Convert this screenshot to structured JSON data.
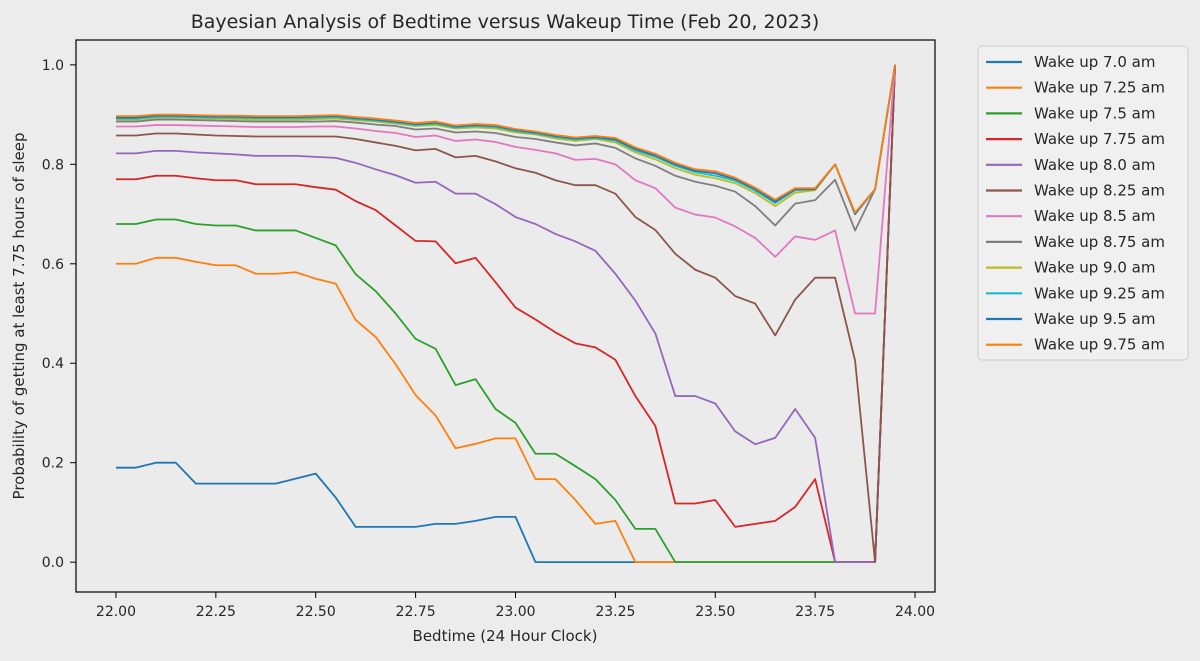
{
  "chart_data": {
    "type": "line",
    "title": "Bayesian Analysis of Bedtime versus Wakeup Time (Feb 20, 2023)",
    "xlabel": "Bedtime (24 Hour Clock)",
    "ylabel": "Probability of getting at least 7.75 hours of sleep",
    "xlim": [
      21.9,
      24.05
    ],
    "ylim": [
      -0.06,
      1.05
    ],
    "xticks": [
      22.0,
      22.25,
      22.5,
      22.75,
      23.0,
      23.25,
      23.5,
      23.75,
      24.0
    ],
    "xtick_labels": [
      "22.00",
      "22.25",
      "22.50",
      "22.75",
      "23.00",
      "23.25",
      "23.50",
      "23.75",
      "24.00"
    ],
    "yticks": [
      0.0,
      0.2,
      0.4,
      0.6,
      0.8,
      1.0
    ],
    "ytick_labels": [
      "0.0",
      "0.2",
      "0.4",
      "0.6",
      "0.8",
      "1.0"
    ],
    "grid": false,
    "legend_position": "outside-right-top",
    "x": [
      22.0,
      22.05,
      22.1,
      22.15,
      22.2,
      22.25,
      22.3,
      22.35,
      22.4,
      22.45,
      22.5,
      22.55,
      22.6,
      22.65,
      22.7,
      22.75,
      22.8,
      22.85,
      22.9,
      22.95,
      23.0,
      23.05,
      23.1,
      23.15,
      23.2,
      23.25,
      23.3,
      23.35,
      23.4,
      23.45,
      23.5,
      23.55,
      23.6,
      23.65,
      23.7,
      23.75,
      23.8,
      23.85,
      23.9,
      23.95
    ],
    "series": [
      {
        "name": "Wake up 7.0 am",
        "color": "#1f77b4",
        "values": [
          0.19,
          0.19,
          0.2,
          0.2,
          0.158,
          0.158,
          0.158,
          0.158,
          0.158,
          0.168,
          0.178,
          0.13,
          0.071,
          0.071,
          0.071,
          0.071,
          0.077,
          0.077,
          0.083,
          0.091,
          0.091,
          0.0,
          0.0,
          0.0,
          0.0,
          0.0,
          0.0,
          0.0,
          0.0,
          0.0,
          0.0,
          0.0,
          0.0,
          0.0,
          0.0,
          0.0,
          0.0,
          0.0,
          0.0,
          1.0
        ]
      },
      {
        "name": "Wake up 7.25 am",
        "color": "#ff7f0e",
        "values": [
          0.6,
          0.6,
          0.612,
          0.612,
          0.604,
          0.597,
          0.597,
          0.58,
          0.58,
          0.583,
          0.57,
          0.56,
          0.487,
          0.453,
          0.398,
          0.336,
          0.295,
          0.229,
          0.238,
          0.249,
          0.249,
          0.167,
          0.167,
          0.125,
          0.077,
          0.083,
          0.0,
          0.0,
          0.0,
          0.0,
          0.0,
          0.0,
          0.0,
          0.0,
          0.0,
          0.0,
          0.0,
          0.0,
          0.0,
          1.0
        ]
      },
      {
        "name": "Wake up 7.5 am",
        "color": "#2ca02c",
        "values": [
          0.68,
          0.68,
          0.689,
          0.689,
          0.68,
          0.677,
          0.677,
          0.667,
          0.667,
          0.667,
          0.652,
          0.637,
          0.579,
          0.545,
          0.5,
          0.449,
          0.429,
          0.356,
          0.368,
          0.308,
          0.28,
          0.218,
          0.218,
          0.193,
          0.167,
          0.125,
          0.067,
          0.067,
          0.0,
          0.0,
          0.0,
          0.0,
          0.0,
          0.0,
          0.0,
          0.0,
          0.0,
          0.0,
          0.0,
          1.0
        ]
      },
      {
        "name": "Wake up 7.75 am",
        "color": "#d62728",
        "values": [
          0.77,
          0.77,
          0.777,
          0.777,
          0.772,
          0.768,
          0.768,
          0.76,
          0.76,
          0.76,
          0.754,
          0.749,
          0.726,
          0.708,
          0.677,
          0.646,
          0.645,
          0.601,
          0.612,
          0.563,
          0.512,
          0.488,
          0.462,
          0.44,
          0.432,
          0.407,
          0.334,
          0.274,
          0.118,
          0.118,
          0.125,
          0.071,
          0.077,
          0.083,
          0.111,
          0.167,
          0.0,
          0.0,
          0.0,
          1.0
        ]
      },
      {
        "name": "Wake up 8.0 am",
        "color": "#9467bd",
        "values": [
          0.822,
          0.822,
          0.827,
          0.827,
          0.824,
          0.822,
          0.82,
          0.817,
          0.817,
          0.817,
          0.815,
          0.813,
          0.803,
          0.79,
          0.778,
          0.763,
          0.765,
          0.741,
          0.741,
          0.72,
          0.694,
          0.68,
          0.66,
          0.645,
          0.626,
          0.58,
          0.526,
          0.46,
          0.334,
          0.334,
          0.319,
          0.263,
          0.237,
          0.25,
          0.308,
          0.25,
          0.0,
          0.0,
          0.0,
          1.0
        ]
      },
      {
        "name": "Wake up 8.25 am",
        "color": "#8c564b",
        "values": [
          0.858,
          0.858,
          0.862,
          0.862,
          0.86,
          0.858,
          0.857,
          0.856,
          0.856,
          0.856,
          0.856,
          0.856,
          0.851,
          0.844,
          0.837,
          0.828,
          0.831,
          0.814,
          0.817,
          0.806,
          0.792,
          0.783,
          0.768,
          0.758,
          0.758,
          0.741,
          0.694,
          0.668,
          0.62,
          0.588,
          0.572,
          0.535,
          0.52,
          0.456,
          0.528,
          0.572,
          0.572,
          0.405,
          0.0,
          1.0
        ]
      },
      {
        "name": "Wake up 8.5 am",
        "color": "#e377c2",
        "values": [
          0.876,
          0.876,
          0.879,
          0.879,
          0.878,
          0.877,
          0.876,
          0.875,
          0.875,
          0.875,
          0.876,
          0.876,
          0.872,
          0.867,
          0.863,
          0.855,
          0.858,
          0.847,
          0.85,
          0.845,
          0.835,
          0.829,
          0.822,
          0.809,
          0.811,
          0.8,
          0.768,
          0.752,
          0.713,
          0.699,
          0.693,
          0.675,
          0.652,
          0.614,
          0.655,
          0.648,
          0.667,
          0.5,
          0.5,
          1.0
        ]
      },
      {
        "name": "Wake up 8.75 am",
        "color": "#7f7f7f",
        "values": [
          0.886,
          0.886,
          0.89,
          0.89,
          0.889,
          0.888,
          0.887,
          0.886,
          0.886,
          0.886,
          0.886,
          0.887,
          0.884,
          0.88,
          0.877,
          0.87,
          0.872,
          0.864,
          0.866,
          0.863,
          0.855,
          0.851,
          0.844,
          0.838,
          0.842,
          0.833,
          0.812,
          0.797,
          0.777,
          0.765,
          0.757,
          0.745,
          0.716,
          0.677,
          0.721,
          0.728,
          0.769,
          0.667,
          0.75,
          1.0
        ]
      },
      {
        "name": "Wake up 9.0 am",
        "color": "#bcbd22",
        "values": [
          0.89,
          0.89,
          0.894,
          0.894,
          0.893,
          0.892,
          0.891,
          0.89,
          0.89,
          0.89,
          0.891,
          0.892,
          0.889,
          0.886,
          0.882,
          0.877,
          0.879,
          0.872,
          0.874,
          0.872,
          0.864,
          0.86,
          0.852,
          0.847,
          0.851,
          0.844,
          0.824,
          0.81,
          0.792,
          0.779,
          0.772,
          0.762,
          0.742,
          0.716,
          0.743,
          0.748,
          0.8,
          0.7,
          0.75,
          1.0
        ]
      },
      {
        "name": "Wake up 9.25 am",
        "color": "#17becf",
        "values": [
          0.892,
          0.892,
          0.896,
          0.896,
          0.895,
          0.894,
          0.894,
          0.893,
          0.893,
          0.893,
          0.894,
          0.895,
          0.891,
          0.888,
          0.884,
          0.879,
          0.882,
          0.874,
          0.877,
          0.875,
          0.867,
          0.862,
          0.855,
          0.85,
          0.853,
          0.848,
          0.828,
          0.815,
          0.797,
          0.784,
          0.777,
          0.767,
          0.747,
          0.722,
          0.748,
          0.75,
          0.8,
          0.7,
          0.75,
          1.0
        ]
      },
      {
        "name": "Wake up 9.5 am",
        "color": "#1f77b4",
        "values": [
          0.894,
          0.894,
          0.898,
          0.898,
          0.897,
          0.896,
          0.896,
          0.895,
          0.895,
          0.895,
          0.896,
          0.897,
          0.893,
          0.89,
          0.886,
          0.881,
          0.884,
          0.876,
          0.879,
          0.877,
          0.869,
          0.864,
          0.857,
          0.852,
          0.855,
          0.85,
          0.831,
          0.818,
          0.8,
          0.787,
          0.782,
          0.77,
          0.75,
          0.725,
          0.75,
          0.75,
          0.8,
          0.7,
          0.75,
          1.0
        ]
      },
      {
        "name": "Wake up 9.75 am",
        "color": "#ff7f0e",
        "values": [
          0.897,
          0.897,
          0.9,
          0.9,
          0.899,
          0.898,
          0.898,
          0.897,
          0.897,
          0.897,
          0.898,
          0.899,
          0.895,
          0.892,
          0.888,
          0.883,
          0.886,
          0.878,
          0.881,
          0.879,
          0.871,
          0.866,
          0.859,
          0.854,
          0.857,
          0.853,
          0.834,
          0.821,
          0.803,
          0.79,
          0.786,
          0.773,
          0.753,
          0.729,
          0.752,
          0.752,
          0.8,
          0.703,
          0.75,
          1.0
        ]
      }
    ]
  }
}
